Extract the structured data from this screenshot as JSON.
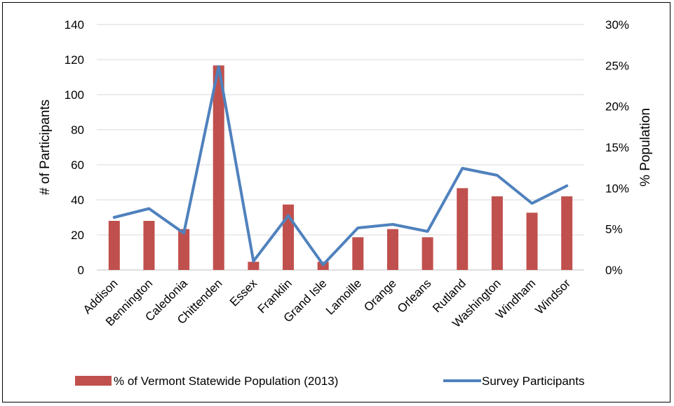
{
  "chart_data": {
    "type": "bar+line",
    "categories": [
      "Addison",
      "Bennington",
      "Caledonia",
      "Chittenden",
      "Essex",
      "Franklin",
      "Grand Isle",
      "Lamoille",
      "Orange",
      "Orleans",
      "Rutland",
      "Washington",
      "Windham",
      "Windsor"
    ],
    "series": [
      {
        "name": "% of Vermont Statewide Population (2013)",
        "type": "bar",
        "axis": "right",
        "color": "#C0504D",
        "values": [
          6.0,
          6.0,
          5.0,
          25.0,
          1.0,
          8.0,
          1.0,
          4.0,
          5.0,
          4.0,
          10.0,
          9.0,
          7.0,
          9.0
        ]
      },
      {
        "name": "Survey Participants",
        "type": "line",
        "axis": "left",
        "color": "#4F81BD",
        "values": [
          30,
          35,
          21,
          116,
          5,
          31,
          3,
          24,
          26,
          22,
          58,
          54,
          38,
          48
        ]
      }
    ],
    "ylabel": "# of Participants",
    "y2label": "% Population",
    "ylim": [
      0,
      140
    ],
    "y2lim": [
      0,
      30
    ],
    "yticks": [
      "0",
      "20",
      "40",
      "60",
      "80",
      "100",
      "120",
      "140"
    ],
    "y2ticks": [
      "0%",
      "5%",
      "10%",
      "15%",
      "20%",
      "25%",
      "30%"
    ],
    "grid": true,
    "legend_position": "bottom"
  }
}
